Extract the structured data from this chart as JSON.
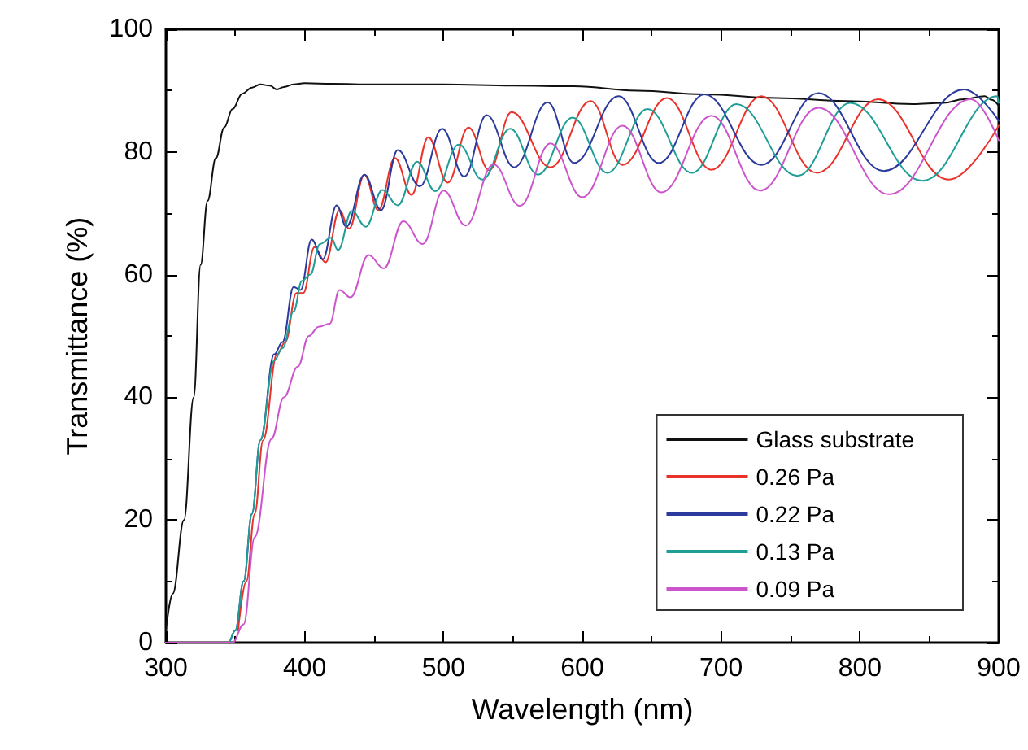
{
  "chart_data": {
    "type": "line",
    "xlabel": "Wavelength (nm)",
    "ylabel": "Transmittance (%)",
    "xlim": [
      300,
      900
    ],
    "xticks": [
      300,
      400,
      500,
      600,
      700,
      800,
      900
    ],
    "ylim": [
      0,
      100
    ],
    "yticks": [
      0,
      20,
      40,
      60,
      80,
      100
    ],
    "grid": false,
    "legend": "bottom right",
    "marker": "none",
    "line_style": "solid",
    "series": [
      {
        "name": "Glass substrate",
        "color": "#111111",
        "x": [
          300,
          305,
          313,
          320,
          325,
          330,
          336,
          342,
          348,
          355,
          362,
          368,
          375,
          380,
          385,
          392,
          400,
          420,
          450,
          500,
          550,
          594,
          640,
          688,
          740,
          790,
          838,
          860,
          875,
          890,
          895,
          900
        ],
        "values": [
          2,
          8,
          20,
          40,
          61.6,
          72,
          79,
          84,
          87,
          89.5,
          90.5,
          91,
          90.8,
          90.2,
          90.6,
          91,
          91.2,
          91.1,
          91,
          91,
          90.8,
          90.7,
          90,
          89.4,
          88.8,
          88.3,
          87.8,
          88,
          88.6,
          89.1,
          88.5,
          87.5
        ]
      },
      {
        "name": "0.26 Pa",
        "color": "#e8322a",
        "x": [
          352,
          358,
          364,
          370,
          380,
          386,
          394,
          399,
          407,
          415,
          425,
          432,
          443,
          453,
          465,
          477,
          489,
          503,
          518,
          533,
          549,
          577,
          606,
          629,
          661,
          693,
          729,
          769,
          813,
          864,
          900
        ],
        "values": [
          2,
          10,
          21,
          33,
          47,
          49,
          57,
          57,
          64.5,
          62,
          70.5,
          67.5,
          76.3,
          70.5,
          79,
          73,
          82.4,
          75,
          84,
          77,
          86.5,
          77.5,
          88.3,
          77.9,
          88.8,
          77.1,
          89.1,
          76.6,
          88.6,
          75.5,
          84.3
        ]
      },
      {
        "name": "0.22 Pa",
        "color": "#2b3a9c",
        "x": [
          300,
          345,
          350,
          356,
          362,
          368,
          378,
          384,
          392,
          397,
          405,
          413,
          423,
          430,
          443,
          455,
          467,
          483,
          499,
          515,
          531,
          551,
          575,
          594,
          626,
          655,
          688,
          729,
          770,
          817,
          875,
          900
        ],
        "values": [
          0,
          0,
          2,
          10,
          21,
          33,
          47,
          49,
          58,
          57.5,
          65.7,
          62.5,
          71.3,
          67.8,
          76.3,
          70.5,
          80.3,
          74.4,
          83.8,
          76,
          86,
          77.5,
          88.1,
          78.2,
          89.1,
          78.2,
          89.4,
          77.9,
          89.6,
          76.9,
          90.2,
          85.1
        ]
      },
      {
        "name": "0.13 Pa",
        "color": "#1f9e96",
        "x": [
          300,
          345,
          350,
          356,
          362,
          368,
          378,
          384,
          392,
          398,
          404,
          411,
          419,
          424,
          434,
          444,
          456,
          467,
          481,
          494,
          511,
          528,
          548,
          568,
          593,
          618,
          647,
          679,
          711,
          755,
          793,
          845,
          899,
          900
        ],
        "values": [
          0,
          0,
          2,
          10,
          21,
          33,
          46,
          48,
          54,
          59,
          60,
          65,
          66,
          64,
          70.4,
          67.8,
          73.8,
          71.3,
          78.4,
          73.6,
          81.2,
          75.5,
          83.8,
          76.3,
          85.6,
          76.6,
          87,
          76.6,
          87.8,
          76.1,
          88,
          75.3,
          89.1,
          88
        ]
      },
      {
        "name": "0.09 Pa",
        "color": "#cc55cc",
        "x": [
          300,
          348,
          356,
          364,
          376,
          385,
          395,
          403,
          410,
          418,
          425,
          433,
          446,
          457,
          471,
          485,
          500,
          516,
          536,
          555,
          577,
          600,
          629,
          657,
          693,
          728,
          770,
          821,
          880,
          900
        ],
        "values": [
          0,
          0,
          3,
          17.2,
          33.2,
          40,
          45,
          50,
          51.5,
          52,
          57.5,
          56.3,
          63.2,
          61,
          68.7,
          65,
          73.7,
          68,
          78,
          71.2,
          81.4,
          72.6,
          84.3,
          73.4,
          85.9,
          73.7,
          87.2,
          73.1,
          88.6,
          81.9
        ]
      }
    ]
  }
}
